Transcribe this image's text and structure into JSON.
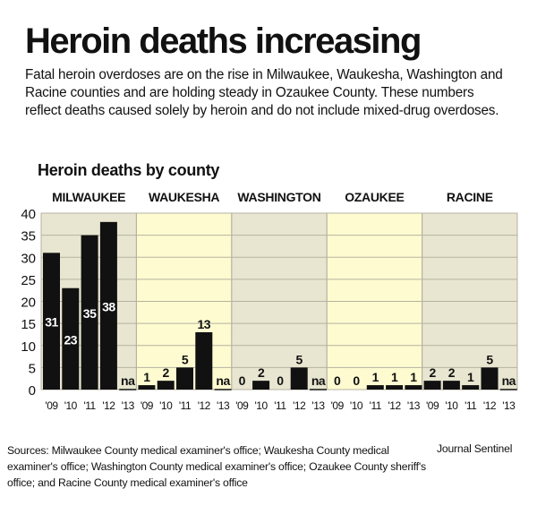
{
  "title": "Heroin deaths increasing",
  "subtitle": "Fatal heroin overdoses are on the rise in Milwaukee, Waukesha, Washington and Racine counties and are holding steady in Ozaukee County. These numbers reflect deaths caused solely by heroin and do not include mixed-drug overdoses.",
  "sources": "Sources: Milwaukee County medical examiner's office; Waukesha County medical examiner's office; Washington County medical examiner's office; Ozaukee County sheriff's office; and Racine County medical examiner's office",
  "credit": "Journal Sentinel",
  "colors": {
    "bar": "#111111",
    "panel_tan": "#e8e6d0",
    "panel_yellow": "#fefbd1",
    "grid": "#b5b3a0",
    "value_on_bar": "#ffffff",
    "value_above_bar": "#111111"
  },
  "chart_data": {
    "type": "bar",
    "title": "Heroin deaths by county",
    "ylim": [
      0,
      40
    ],
    "yticks": [
      0,
      5,
      10,
      15,
      20,
      25,
      30,
      35,
      40
    ],
    "grid": true,
    "categories": [
      "'09",
      "'10",
      "'11",
      "'12",
      "'13"
    ],
    "missing_label": "na",
    "series": [
      {
        "name": "MILWAUKEE",
        "values": [
          31,
          23,
          35,
          38,
          null
        ],
        "panel": "tan"
      },
      {
        "name": "WAUKESHA",
        "values": [
          1,
          2,
          5,
          13,
          null
        ],
        "panel": "yellow"
      },
      {
        "name": "WASHINGTON",
        "values": [
          0,
          2,
          0,
          5,
          null
        ],
        "panel": "tan"
      },
      {
        "name": "OZAUKEE",
        "values": [
          0,
          0,
          1,
          1,
          1
        ],
        "panel": "yellow"
      },
      {
        "name": "RACINE",
        "values": [
          2,
          2,
          1,
          5,
          null
        ],
        "panel": "tan"
      }
    ]
  }
}
